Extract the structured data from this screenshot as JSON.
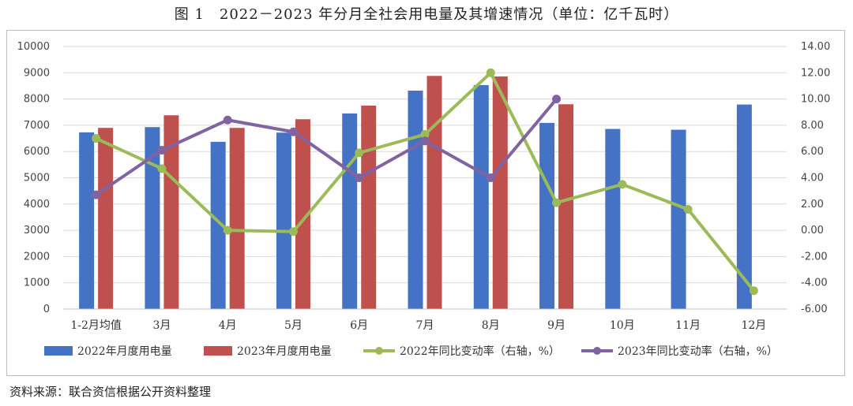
{
  "title": "图 1　2022－2023 年分月全社会用电量及其增速情况（单位：亿千瓦时）",
  "source": "资料来源：联合资信根据公开资料整理",
  "colors": {
    "bar2022": "#4472C4",
    "bar2023": "#C0504D",
    "line2022": "#9BBB59",
    "line2023": "#8064A2",
    "grid": "#D9D9D9"
  },
  "chart_data": {
    "type": "bar",
    "categories": [
      "1-2月均值",
      "3月",
      "4月",
      "5月",
      "6月",
      "7月",
      "8月",
      "9月",
      "10月",
      "11月",
      "12月"
    ],
    "ylim": [
      0,
      10000
    ],
    "yticks": [
      "0",
      "1000",
      "2000",
      "3000",
      "4000",
      "5000",
      "6000",
      "7000",
      "8000",
      "9000",
      "10000"
    ],
    "y2lim": [
      -6,
      14
    ],
    "y2ticks": [
      "-6.00",
      "-4.00",
      "-2.00",
      "0.00",
      "2.00",
      "4.00",
      "6.00",
      "8.00",
      "10.00",
      "12.00",
      "14.00"
    ],
    "grid": true,
    "legend": "bottom",
    "bar_series": [
      {
        "name": "2022年月度用电量",
        "values": [
          6730,
          6930,
          6370,
          6720,
          7450,
          8320,
          8530,
          7090,
          6860,
          6830,
          7790
        ]
      },
      {
        "name": "2023年月度用电量",
        "values": [
          6900,
          7380,
          6900,
          7230,
          7750,
          8880,
          8860,
          7800,
          null,
          null,
          null
        ]
      }
    ],
    "line_series": [
      {
        "name": "2022年同比变动率（右轴，%）",
        "values": [
          7.0,
          4.7,
          0.0,
          -0.1,
          5.9,
          7.3,
          12.0,
          2.1,
          3.5,
          1.6,
          -4.6
        ]
      },
      {
        "name": "2023年同比变动率（右轴，%）",
        "values": [
          2.7,
          6.1,
          8.4,
          7.5,
          4.0,
          6.8,
          4.0,
          10.0,
          null,
          null,
          null
        ]
      }
    ]
  }
}
